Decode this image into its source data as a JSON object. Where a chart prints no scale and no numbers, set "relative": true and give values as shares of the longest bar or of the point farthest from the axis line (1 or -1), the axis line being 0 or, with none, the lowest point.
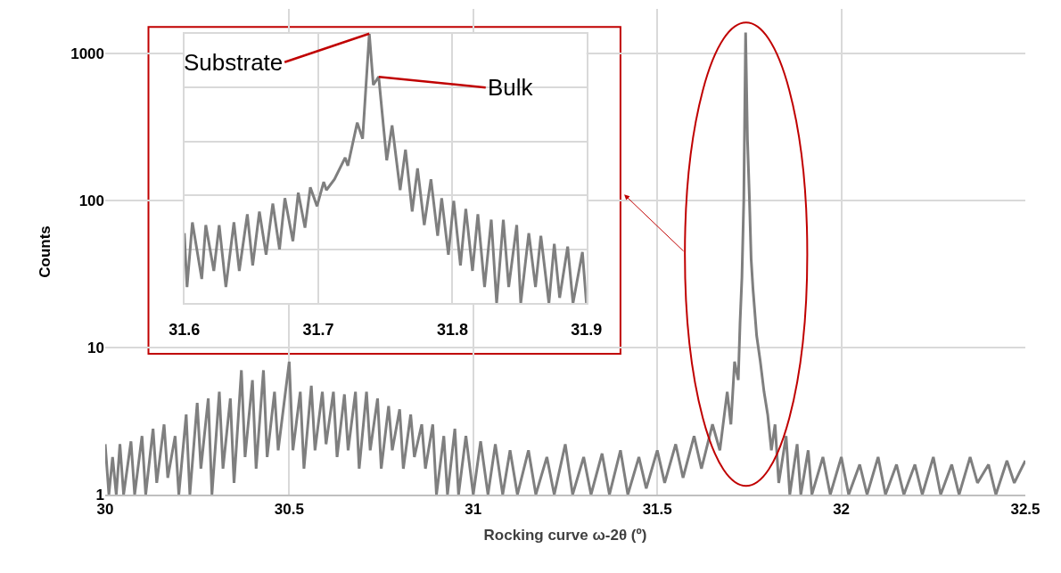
{
  "chart_data": [
    {
      "type": "line",
      "xlabel": "Rocking curve ω-2θ (º)",
      "ylabel": "Counts",
      "log": true,
      "grid": true,
      "xlim": [
        30,
        32.5
      ],
      "xticks": [
        30,
        30.5,
        31,
        31.5,
        32,
        32.5
      ],
      "ylim": [
        1,
        2000
      ],
      "yticks": [
        1,
        10,
        100,
        1000
      ],
      "series": [
        {
          "color": "#7f7f7f",
          "x": [
            30.0,
            30.01,
            30.02,
            30.03,
            30.04,
            30.05,
            30.07,
            30.08,
            30.1,
            30.11,
            30.13,
            30.14,
            30.16,
            30.17,
            30.19,
            30.2,
            30.22,
            30.23,
            30.25,
            30.26,
            30.28,
            30.29,
            30.31,
            30.32,
            30.34,
            30.35,
            30.37,
            30.38,
            30.4,
            30.41,
            30.43,
            30.44,
            30.46,
            30.47,
            30.5,
            30.51,
            30.53,
            30.54,
            30.56,
            30.57,
            30.59,
            30.6,
            30.62,
            30.63,
            30.65,
            30.66,
            30.68,
            30.69,
            30.71,
            30.72,
            30.74,
            30.75,
            30.77,
            30.78,
            30.8,
            30.81,
            30.83,
            30.84,
            30.86,
            30.87,
            30.89,
            30.9,
            30.92,
            30.93,
            30.95,
            30.96,
            30.98,
            31.0,
            31.02,
            31.04,
            31.06,
            31.08,
            31.1,
            31.12,
            31.15,
            31.17,
            31.2,
            31.22,
            31.25,
            31.27,
            31.3,
            31.32,
            31.35,
            31.37,
            31.4,
            31.42,
            31.45,
            31.47,
            31.5,
            31.52,
            31.55,
            31.57,
            31.6,
            31.62,
            31.65,
            31.67,
            31.69,
            31.7,
            31.71,
            31.72,
            31.725,
            31.73,
            31.735,
            31.74,
            31.745,
            31.75,
            31.755,
            31.76,
            31.77,
            31.78,
            31.79,
            31.8,
            31.81,
            31.82,
            31.83,
            31.85,
            31.86,
            31.88,
            31.89,
            31.91,
            31.92,
            31.95,
            31.97,
            32.0,
            32.02,
            32.05,
            32.07,
            32.1,
            32.12,
            32.15,
            32.17,
            32.2,
            32.22,
            32.25,
            32.27,
            32.3,
            32.32,
            32.35,
            32.37,
            32.4,
            32.42,
            32.45,
            32.47,
            32.5
          ],
          "values": [
            2.2,
            1,
            1.8,
            1,
            2.2,
            1,
            2.3,
            1,
            2.5,
            1,
            2.8,
            1.2,
            3,
            1.3,
            2.5,
            1,
            3.5,
            1,
            4.2,
            1.5,
            4.5,
            1,
            5,
            1.5,
            4.5,
            1.2,
            7,
            1.8,
            6,
            1.5,
            7,
            1.8,
            5,
            2,
            8,
            2,
            5,
            1.5,
            5.5,
            2,
            5,
            2.2,
            5,
            1.8,
            4.8,
            2,
            5,
            1.5,
            5,
            2,
            4.5,
            1.5,
            4,
            2,
            3.8,
            1.5,
            3.5,
            1.8,
            3,
            1.5,
            3,
            1,
            2.5,
            1,
            2.8,
            1,
            2.5,
            1,
            2.3,
            1,
            2.2,
            1,
            2,
            1,
            2,
            1,
            1.8,
            1,
            2.2,
            1,
            1.8,
            1,
            1.9,
            1,
            2,
            1,
            1.8,
            1.1,
            2,
            1.2,
            2.2,
            1.3,
            2.5,
            1.5,
            3,
            2,
            5,
            3,
            8,
            6,
            15,
            30,
            100,
            1380,
            260,
            110,
            40,
            25,
            12,
            8,
            5,
            3.5,
            2,
            3,
            1.2,
            2.5,
            1,
            2.2,
            1,
            2,
            1,
            1.8,
            1,
            1.8,
            1,
            1.6,
            1,
            1.8,
            1,
            1.6,
            1,
            1.6,
            1,
            1.8,
            1,
            1.6,
            1,
            1.8,
            1.2,
            1.6,
            1,
            1.7,
            1.2,
            1.7
          ]
        }
      ]
    },
    {
      "type": "line",
      "relative": true,
      "grid": true,
      "tick_labels": "x",
      "xlim": [
        31.6,
        31.9
      ],
      "xticks": [
        31.6,
        31.7,
        31.8,
        31.9
      ],
      "annotations": [
        {
          "text": "Substrate",
          "x": 31.738,
          "y": 1
        },
        {
          "text": "Bulk",
          "x": 31.745,
          "y": 0.84
        }
      ],
      "series": [
        {
          "color": "#7f7f7f",
          "x": [
            31.6,
            31.602,
            31.606,
            31.613,
            31.616,
            31.622,
            31.626,
            31.631,
            31.637,
            31.641,
            31.647,
            31.651,
            31.656,
            31.661,
            31.666,
            31.671,
            31.675,
            31.681,
            31.685,
            31.69,
            31.694,
            31.699,
            31.704,
            31.706,
            31.712,
            31.72,
            31.722,
            31.729,
            31.733,
            31.738,
            31.741,
            31.745,
            31.751,
            31.755,
            31.761,
            31.765,
            31.77,
            31.774,
            31.779,
            31.784,
            31.789,
            31.792,
            31.797,
            31.801,
            31.806,
            31.81,
            31.815,
            31.819,
            31.824,
            31.829,
            31.833,
            31.838,
            31.842,
            31.848,
            31.851,
            31.857,
            31.862,
            31.866,
            31.872,
            31.876,
            31.88,
            31.886,
            31.89,
            31.897,
            31.9
          ],
          "values": [
            0.26,
            0.06,
            0.3,
            0.09,
            0.29,
            0.12,
            0.29,
            0.06,
            0.3,
            0.12,
            0.33,
            0.14,
            0.34,
            0.18,
            0.37,
            0.2,
            0.39,
            0.23,
            0.41,
            0.28,
            0.43,
            0.36,
            0.45,
            0.42,
            0.46,
            0.54,
            0.51,
            0.67,
            0.61,
            1,
            0.81,
            0.84,
            0.53,
            0.66,
            0.42,
            0.57,
            0.34,
            0.5,
            0.29,
            0.46,
            0.25,
            0.39,
            0.18,
            0.38,
            0.14,
            0.35,
            0.12,
            0.33,
            0.06,
            0.31,
            0,
            0.31,
            0.06,
            0.29,
            0,
            0.26,
            0.06,
            0.25,
            0,
            0.22,
            0.02,
            0.21,
            0,
            0.19,
            0
          ]
        }
      ]
    }
  ]
}
